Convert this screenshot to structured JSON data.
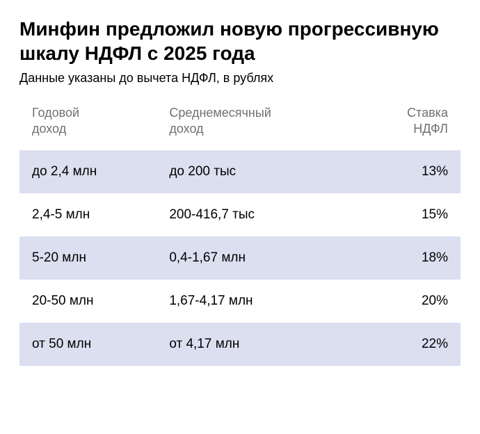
{
  "title": "Минфин предложил новую прогрессивную шкалу НДФЛ с 2025 года",
  "subtitle": "Данные указаны до вычета НДФЛ, в рублях",
  "table": {
    "type": "table",
    "striped_row_color": "#dbdff0",
    "background_color": "#ffffff",
    "header_text_color": "#707070",
    "cell_text_color": "#000000",
    "header_fontsize": 18,
    "cell_fontsize": 19,
    "columns": [
      {
        "label": "Годовой\nдоход",
        "align": "left",
        "width_pct": 33
      },
      {
        "label": "Среднемесячный\nдоход",
        "align": "left",
        "width_pct": 44
      },
      {
        "label": "Ставка\nНДФЛ",
        "align": "right",
        "width_pct": 23
      }
    ],
    "rows": [
      {
        "annual": "до 2,4 млн",
        "monthly": "до 200 тыс",
        "rate": "13%"
      },
      {
        "annual": "2,4-5 млн",
        "monthly": "200-416,7 тыс",
        "rate": "15%"
      },
      {
        "annual": "5-20 млн",
        "monthly": "0,4-1,67 млн",
        "rate": "18%"
      },
      {
        "annual": "20-50 млн",
        "monthly": "1,67-4,17 млн",
        "rate": "20%"
      },
      {
        "annual": "от 50 млн",
        "monthly": "от 4,17 млн",
        "rate": "22%"
      }
    ]
  }
}
